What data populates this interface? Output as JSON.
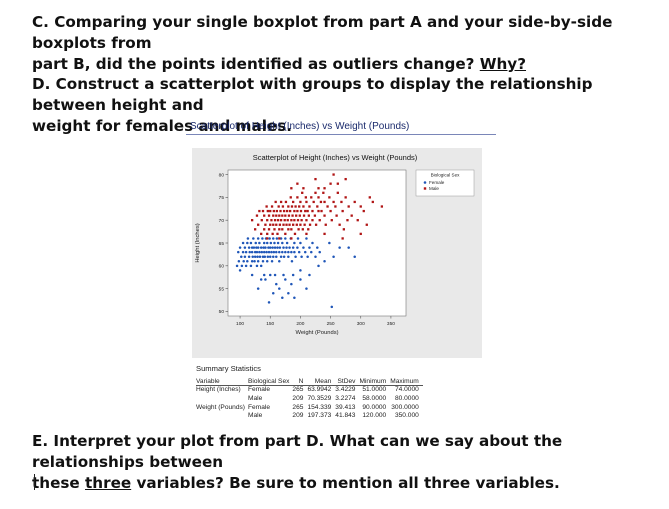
{
  "questions": {
    "c_line1": "C. Comparing your single boxplot from part A and your side-by-side boxplots from",
    "c_line2_pre": "part B, did the points identified as outliers change? ",
    "c_line2_link": "Why?",
    "d_line1": "D. Construct a scatterplot with groups to display the relationship between height and",
    "d_line2": "weight for females and males.",
    "e_line1": "E. Interpret your plot from part D. What can we say about the relationships between",
    "e_line2_pre": "these ",
    "e_line2_underlined": "three",
    "e_line2_post": " variables? Be sure to mention all three variables."
  },
  "panel": {
    "title": "Scatterplot of Height (Inches) vs Weight (Pounds)"
  },
  "colors": {
    "female": "#1f56b8",
    "male": "#b01515",
    "panel_bg": "#e9e9e9"
  },
  "chart_data": {
    "type": "scatter",
    "title": "Scatterplot of Height (Inches) vs Weight (Pounds)",
    "xlabel": "Weight (Pounds)",
    "ylabel": "Height (Inches)",
    "xlim": [
      80,
      375
    ],
    "ylim": [
      49,
      81
    ],
    "xticks": [
      100,
      150,
      200,
      250,
      300,
      350
    ],
    "yticks": [
      50,
      55,
      60,
      65,
      70,
      75,
      80
    ],
    "legend": {
      "title": "Biological Sex",
      "placement": "top-right"
    },
    "series": [
      {
        "name": "Female",
        "color": "#1f56b8",
        "points": [
          [
            95,
            60
          ],
          [
            97,
            63
          ],
          [
            98,
            61
          ],
          [
            100,
            59
          ],
          [
            100,
            64
          ],
          [
            102,
            62
          ],
          [
            103,
            60
          ],
          [
            105,
            63
          ],
          [
            105,
            65
          ],
          [
            106,
            61
          ],
          [
            108,
            62
          ],
          [
            108,
            64
          ],
          [
            110,
            60
          ],
          [
            110,
            63
          ],
          [
            112,
            61
          ],
          [
            112,
            65
          ],
          [
            113,
            66
          ],
          [
            115,
            62
          ],
          [
            115,
            64
          ],
          [
            116,
            63
          ],
          [
            118,
            60
          ],
          [
            118,
            65
          ],
          [
            120,
            61
          ],
          [
            120,
            63
          ],
          [
            120,
            64
          ],
          [
            121,
            62
          ],
          [
            122,
            66
          ],
          [
            123,
            64
          ],
          [
            124,
            61
          ],
          [
            125,
            62
          ],
          [
            125,
            63
          ],
          [
            126,
            65
          ],
          [
            127,
            64
          ],
          [
            128,
            60
          ],
          [
            128,
            63
          ],
          [
            129,
            62
          ],
          [
            130,
            61
          ],
          [
            130,
            64
          ],
          [
            130,
            66
          ],
          [
            132,
            63
          ],
          [
            132,
            65
          ],
          [
            133,
            62
          ],
          [
            135,
            64
          ],
          [
            135,
            60
          ],
          [
            136,
            63
          ],
          [
            137,
            66
          ],
          [
            138,
            61
          ],
          [
            138,
            62
          ],
          [
            139,
            64
          ],
          [
            140,
            63
          ],
          [
            140,
            65
          ],
          [
            141,
            62
          ],
          [
            142,
            64
          ],
          [
            143,
            66
          ],
          [
            144,
            63
          ],
          [
            145,
            61
          ],
          [
            145,
            65
          ],
          [
            146,
            62
          ],
          [
            147,
            64
          ],
          [
            148,
            63
          ],
          [
            149,
            66
          ],
          [
            150,
            62
          ],
          [
            150,
            64
          ],
          [
            151,
            65
          ],
          [
            152,
            63
          ],
          [
            153,
            61
          ],
          [
            154,
            64
          ],
          [
            155,
            62
          ],
          [
            155,
            66
          ],
          [
            156,
            63
          ],
          [
            157,
            65
          ],
          [
            158,
            64
          ],
          [
            160,
            62
          ],
          [
            160,
            63
          ],
          [
            161,
            66
          ],
          [
            162,
            64
          ],
          [
            163,
            65
          ],
          [
            165,
            63
          ],
          [
            165,
            61
          ],
          [
            166,
            64
          ],
          [
            168,
            62
          ],
          [
            168,
            66
          ],
          [
            170,
            63
          ],
          [
            170,
            65
          ],
          [
            172,
            64
          ],
          [
            173,
            62
          ],
          [
            175,
            63
          ],
          [
            175,
            66
          ],
          [
            177,
            64
          ],
          [
            178,
            65
          ],
          [
            180,
            63
          ],
          [
            180,
            62
          ],
          [
            182,
            64
          ],
          [
            184,
            66
          ],
          [
            185,
            63
          ],
          [
            186,
            61
          ],
          [
            188,
            64
          ],
          [
            190,
            65
          ],
          [
            190,
            63
          ],
          [
            192,
            62
          ],
          [
            195,
            64
          ],
          [
            196,
            66
          ],
          [
            198,
            63
          ],
          [
            200,
            65
          ],
          [
            202,
            62
          ],
          [
            205,
            64
          ],
          [
            208,
            63
          ],
          [
            210,
            66
          ],
          [
            212,
            62
          ],
          [
            215,
            64
          ],
          [
            218,
            63
          ],
          [
            220,
            65
          ],
          [
            225,
            62
          ],
          [
            228,
            64
          ],
          [
            232,
            63
          ],
          [
            240,
            61
          ],
          [
            248,
            65
          ],
          [
            255,
            62
          ],
          [
            265,
            64
          ],
          [
            280,
            64
          ],
          [
            290,
            62
          ],
          [
            252,
            51
          ],
          [
            150,
            58
          ],
          [
            155,
            54
          ],
          [
            160,
            56
          ],
          [
            165,
            55
          ],
          [
            170,
            53
          ],
          [
            175,
            57
          ],
          [
            180,
            54
          ],
          [
            185,
            56
          ],
          [
            190,
            53
          ],
          [
            142,
            57
          ],
          [
            130,
            55
          ],
          [
            148,
            52
          ],
          [
            200,
            57
          ],
          [
            210,
            55
          ],
          [
            140,
            58
          ],
          [
            172,
            58
          ],
          [
            188,
            58
          ],
          [
            135,
            57
          ],
          [
            120,
            58
          ],
          [
            158,
            58
          ],
          [
            200,
            59
          ],
          [
            215,
            58
          ],
          [
            230,
            60
          ]
        ]
      },
      {
        "name": "Male",
        "color": "#b01515",
        "points": [
          [
            120,
            70
          ],
          [
            125,
            68
          ],
          [
            128,
            71
          ],
          [
            130,
            69
          ],
          [
            132,
            72
          ],
          [
            135,
            67
          ],
          [
            136,
            70
          ],
          [
            138,
            72
          ],
          [
            140,
            68
          ],
          [
            140,
            71
          ],
          [
            142,
            69
          ],
          [
            144,
            73
          ],
          [
            145,
            67
          ],
          [
            145,
            70
          ],
          [
            146,
            72
          ],
          [
            148,
            68
          ],
          [
            148,
            71
          ],
          [
            150,
            69
          ],
          [
            150,
            72
          ],
          [
            152,
            70
          ],
          [
            153,
            73
          ],
          [
            154,
            67
          ],
          [
            155,
            71
          ],
          [
            155,
            69
          ],
          [
            156,
            72
          ],
          [
            157,
            68
          ],
          [
            158,
            70
          ],
          [
            159,
            74
          ],
          [
            160,
            71
          ],
          [
            160,
            69
          ],
          [
            161,
            72
          ],
          [
            162,
            67
          ],
          [
            163,
            70
          ],
          [
            164,
            73
          ],
          [
            165,
            68
          ],
          [
            165,
            71
          ],
          [
            166,
            69
          ],
          [
            167,
            72
          ],
          [
            168,
            70
          ],
          [
            168,
            74
          ],
          [
            170,
            68
          ],
          [
            170,
            71
          ],
          [
            171,
            73
          ],
          [
            172,
            69
          ],
          [
            173,
            72
          ],
          [
            174,
            70
          ],
          [
            175,
            67
          ],
          [
            175,
            71
          ],
          [
            176,
            74
          ],
          [
            177,
            69
          ],
          [
            178,
            72
          ],
          [
            179,
            70
          ],
          [
            180,
            68
          ],
          [
            180,
            73
          ],
          [
            181,
            71
          ],
          [
            182,
            69
          ],
          [
            183,
            72
          ],
          [
            184,
            75
          ],
          [
            185,
            70
          ],
          [
            185,
            68
          ],
          [
            186,
            73
          ],
          [
            187,
            71
          ],
          [
            188,
            69
          ],
          [
            188,
            74
          ],
          [
            190,
            72
          ],
          [
            190,
            70
          ],
          [
            191,
            67
          ],
          [
            192,
            73
          ],
          [
            193,
            71
          ],
          [
            194,
            69
          ],
          [
            195,
            72
          ],
          [
            195,
            75
          ],
          [
            196,
            70
          ],
          [
            197,
            68
          ],
          [
            198,
            73
          ],
          [
            199,
            71
          ],
          [
            200,
            69
          ],
          [
            200,
            74
          ],
          [
            201,
            72
          ],
          [
            202,
            70
          ],
          [
            203,
            76
          ],
          [
            204,
            68
          ],
          [
            205,
            73
          ],
          [
            206,
            71
          ],
          [
            207,
            69
          ],
          [
            208,
            72
          ],
          [
            209,
            75
          ],
          [
            210,
            70
          ],
          [
            210,
            74
          ],
          [
            212,
            72
          ],
          [
            213,
            68
          ],
          [
            214,
            71
          ],
          [
            215,
            73
          ],
          [
            216,
            69
          ],
          [
            218,
            75
          ],
          [
            220,
            72
          ],
          [
            220,
            70
          ],
          [
            222,
            74
          ],
          [
            224,
            71
          ],
          [
            225,
            76
          ],
          [
            226,
            69
          ],
          [
            228,
            73
          ],
          [
            230,
            72
          ],
          [
            230,
            75
          ],
          [
            232,
            70
          ],
          [
            234,
            74
          ],
          [
            235,
            72
          ],
          [
            238,
            76
          ],
          [
            240,
            71
          ],
          [
            240,
            74
          ],
          [
            242,
            69
          ],
          [
            245,
            73
          ],
          [
            248,
            75
          ],
          [
            250,
            72
          ],
          [
            252,
            70
          ],
          [
            255,
            74
          ],
          [
            258,
            73
          ],
          [
            260,
            71
          ],
          [
            262,
            76
          ],
          [
            265,
            69
          ],
          [
            268,
            74
          ],
          [
            270,
            72
          ],
          [
            272,
            68
          ],
          [
            275,
            75
          ],
          [
            278,
            70
          ],
          [
            280,
            73
          ],
          [
            285,
            71
          ],
          [
            290,
            74
          ],
          [
            295,
            70
          ],
          [
            300,
            73
          ],
          [
            305,
            72
          ],
          [
            310,
            69
          ],
          [
            315,
            75
          ],
          [
            320,
            74
          ],
          [
            335,
            73
          ],
          [
            195,
            78
          ],
          [
            225,
            79
          ],
          [
            230,
            77
          ],
          [
            240,
            77
          ],
          [
            250,
            78
          ],
          [
            255,
            80
          ],
          [
            262,
            78
          ],
          [
            275,
            79
          ],
          [
            205,
            77
          ],
          [
            185,
            77
          ],
          [
            145,
            66
          ],
          [
            165,
            66
          ],
          [
            185,
            66
          ],
          [
            210,
            67
          ],
          [
            240,
            67
          ],
          [
            270,
            66
          ],
          [
            300,
            67
          ]
        ]
      }
    ]
  },
  "summary": {
    "title": "Summary Statistics",
    "headers": [
      "Variable",
      "Biological Sex",
      "N",
      "Mean",
      "StDev",
      "Minimum",
      "Maximum"
    ],
    "rows": [
      [
        "Height (Inches)",
        "Female",
        "265",
        "63.9942",
        "3.4229",
        "51.0000",
        "74.0000"
      ],
      [
        "",
        "Male",
        "209",
        "70.3529",
        "3.2274",
        "58.0000",
        "80.0000"
      ],
      [
        "Weight (Pounds)",
        "Female",
        "265",
        "154.339",
        "39.413",
        "90.0000",
        "300.0000"
      ],
      [
        "",
        "Male",
        "209",
        "197.373",
        "41.843",
        "120.000",
        "350.000"
      ]
    ]
  }
}
